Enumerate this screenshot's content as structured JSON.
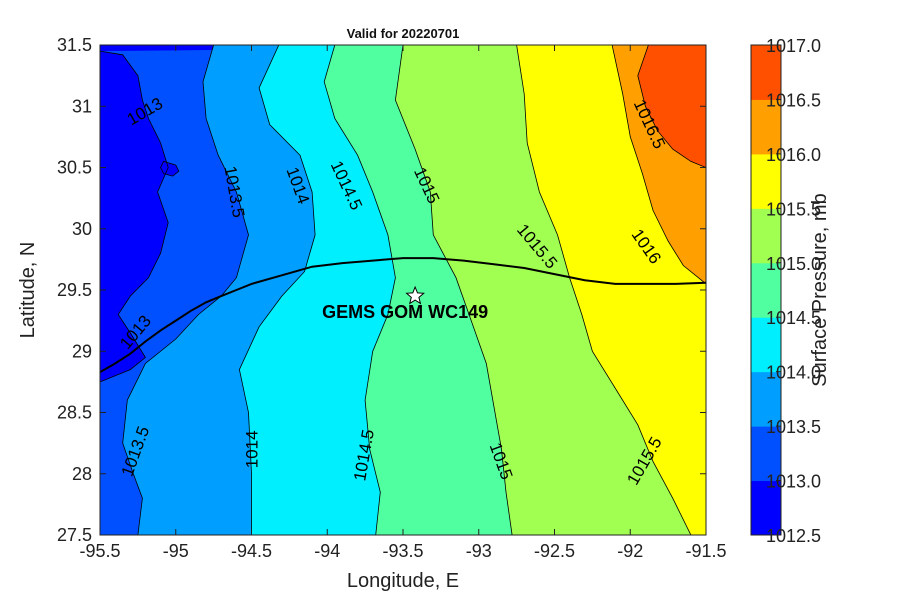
{
  "title": "Valid for 20220701",
  "xlabel": "Longitude, E",
  "ylabel": "Latitude, N",
  "x_ticks": [
    "-95.5",
    "-95",
    "-94.5",
    "-94",
    "-93.5",
    "-93",
    "-92.5",
    "-92",
    "-91.5"
  ],
  "y_ticks": [
    "27.5",
    "28",
    "28.5",
    "29",
    "29.5",
    "30",
    "30.5",
    "31",
    "31.5"
  ],
  "colorbar": {
    "label": "Surface Pressure, mb",
    "ticks": [
      "1012.5",
      "1013.0",
      "1013.5",
      "1014.0",
      "1014.5",
      "1015.0",
      "1015.5",
      "1016.0",
      "1016.5",
      "1017.0"
    ],
    "colors": [
      "#0000ff",
      "#0050ff",
      "#009fff",
      "#00efff",
      "#50ffa0",
      "#a0ff50",
      "#ffff00",
      "#ffa000",
      "#ff5000"
    ]
  },
  "station": {
    "label": "GEMS GOM WC149",
    "lon": -93.42,
    "lat": 29.45,
    "icon": "star-icon"
  },
  "contour_labels": [
    {
      "text": "1013",
      "lon": -95.2,
      "lat": 30.95,
      "angle": -30
    },
    {
      "text": "1013.5",
      "lon": -94.62,
      "lat": 30.3,
      "angle": 80
    },
    {
      "text": "1014",
      "lon": -94.2,
      "lat": 30.35,
      "angle": 70
    },
    {
      "text": "1014.5",
      "lon": -93.88,
      "lat": 30.35,
      "angle": 65
    },
    {
      "text": "1015",
      "lon": -93.35,
      "lat": 30.35,
      "angle": 65
    },
    {
      "text": "1015.5",
      "lon": -92.62,
      "lat": 29.85,
      "angle": 50
    },
    {
      "text": "1016",
      "lon": -91.9,
      "lat": 29.85,
      "angle": 55
    },
    {
      "text": "1016.5",
      "lon": -91.88,
      "lat": 30.85,
      "angle": 65
    },
    {
      "text": "1013",
      "lon": -95.26,
      "lat": 29.15,
      "angle": -50
    },
    {
      "text": "1013.5",
      "lon": -95.26,
      "lat": 28.18,
      "angle": -70
    },
    {
      "text": "1014",
      "lon": -94.49,
      "lat": 28.2,
      "angle": -90
    },
    {
      "text": "1014.5",
      "lon": -93.75,
      "lat": 28.15,
      "angle": -80
    },
    {
      "text": "1015",
      "lon": -92.86,
      "lat": 28.1,
      "angle": 70
    },
    {
      "text": "1015.5",
      "lon": -91.9,
      "lat": 28.1,
      "angle": -60
    }
  ],
  "chart_data": {
    "type": "heatmap",
    "title": "Valid for 20220701",
    "xlabel": "Longitude, E",
    "ylabel": "Latitude, N",
    "xlim": [
      -95.5,
      -91.5
    ],
    "ylim": [
      27.5,
      31.5
    ],
    "colorbar_label": "Surface Pressure, mb",
    "clim": [
      1012.5,
      1017.0
    ],
    "contour_levels": [
      1013.0,
      1013.5,
      1014.0,
      1014.5,
      1015.0,
      1015.5,
      1016.0,
      1016.5
    ],
    "contour_lines": [
      {
        "level": 1013.0,
        "lon": [
          -95.5,
          -95.35,
          -95.25,
          -95.22,
          -95.18,
          -95.1,
          -95.05,
          -95.12,
          -95.05,
          -95.1,
          -95.18,
          -95.3,
          -95.38,
          -95.3,
          -95.2,
          -95.3,
          -95.5
        ],
        "lat": [
          31.45,
          31.42,
          31.25,
          31.05,
          30.9,
          30.7,
          30.5,
          30.3,
          30.05,
          29.8,
          29.6,
          29.45,
          29.3,
          29.15,
          28.95,
          28.85,
          28.75
        ]
      },
      {
        "level": 1013.0,
        "lon": [
          -95.08,
          -95.02,
          -94.98,
          -95.0,
          -95.08,
          -95.1,
          -95.08
        ],
        "lat": [
          30.45,
          30.43,
          30.47,
          30.52,
          30.55,
          30.5,
          30.45
        ]
      },
      {
        "level": 1013.5,
        "lon": [
          -94.75,
          -94.82,
          -94.8,
          -94.72,
          -94.6,
          -94.52,
          -94.6,
          -94.7,
          -94.85,
          -95.0,
          -95.2,
          -95.32,
          -95.35,
          -95.28,
          -95.22,
          -95.25
        ],
        "lat": [
          31.5,
          31.2,
          30.9,
          30.6,
          30.3,
          29.95,
          29.6,
          29.45,
          29.3,
          29.1,
          28.9,
          28.6,
          28.25,
          28.0,
          27.8,
          27.5
        ]
      },
      {
        "level": 1014.0,
        "lon": [
          -94.32,
          -94.45,
          -94.38,
          -94.18,
          -94.1,
          -94.08,
          -94.15,
          -94.3,
          -94.45,
          -94.58,
          -94.52,
          -94.5,
          -94.5
        ],
        "lat": [
          31.5,
          31.15,
          30.85,
          30.6,
          30.3,
          29.95,
          29.65,
          29.45,
          29.2,
          28.85,
          28.5,
          28.0,
          27.5
        ]
      },
      {
        "level": 1014.5,
        "lon": [
          -93.95,
          -94.02,
          -93.95,
          -93.8,
          -93.7,
          -93.6,
          -93.55,
          -93.6,
          -93.7,
          -93.75,
          -93.72,
          -93.65,
          -93.68
        ],
        "lat": [
          31.5,
          31.2,
          30.9,
          30.6,
          30.3,
          29.95,
          29.6,
          29.3,
          29.0,
          28.6,
          28.2,
          27.85,
          27.5
        ]
      },
      {
        "level": 1015.0,
        "lon": [
          -93.5,
          -93.55,
          -93.42,
          -93.32,
          -93.3,
          -93.15,
          -93.05,
          -92.95,
          -92.9,
          -92.85,
          -92.82,
          -92.78
        ],
        "lat": [
          31.5,
          31.05,
          30.65,
          30.3,
          29.95,
          29.6,
          29.25,
          28.9,
          28.55,
          28.2,
          27.85,
          27.5
        ]
      },
      {
        "level": 1015.5,
        "lon": [
          -92.75,
          -92.7,
          -92.68,
          -92.6,
          -92.48,
          -92.4,
          -92.32,
          -92.25,
          -92.1,
          -91.95,
          -91.85,
          -91.72,
          -91.6
        ],
        "lat": [
          31.5,
          31.1,
          30.7,
          30.3,
          29.95,
          29.6,
          29.3,
          29.0,
          28.7,
          28.4,
          28.1,
          27.8,
          27.5
        ]
      },
      {
        "level": 1016.0,
        "lon": [
          -92.12,
          -92.05,
          -92.0,
          -91.92,
          -91.85,
          -91.75,
          -91.65,
          -91.55,
          -91.5
        ],
        "lat": [
          31.5,
          31.1,
          30.75,
          30.45,
          30.15,
          29.9,
          29.7,
          29.6,
          29.55
        ]
      },
      {
        "level": 1016.5,
        "lon": [
          -91.88,
          -91.95,
          -91.9,
          -91.82,
          -91.72,
          -91.6,
          -91.5
        ],
        "lat": [
          31.5,
          31.25,
          31.0,
          30.8,
          30.65,
          30.55,
          30.5
        ]
      }
    ],
    "coastline": {
      "lon": [
        -95.5,
        -95.4,
        -95.3,
        -95.2,
        -95.1,
        -95.0,
        -94.9,
        -94.8,
        -94.7,
        -94.6,
        -94.5,
        -94.3,
        -94.1,
        -93.9,
        -93.7,
        -93.5,
        -93.3,
        -93.1,
        -92.9,
        -92.7,
        -92.5,
        -92.3,
        -92.1,
        -91.9,
        -91.7,
        -91.5
      ],
      "lat": [
        28.83,
        28.9,
        28.98,
        29.08,
        29.17,
        29.25,
        29.33,
        29.4,
        29.45,
        29.5,
        29.55,
        29.62,
        29.69,
        29.72,
        29.74,
        29.76,
        29.76,
        29.74,
        29.71,
        29.68,
        29.63,
        29.58,
        29.55,
        29.55,
        29.55,
        29.56
      ]
    },
    "grid": false,
    "legend": "colorbar-right"
  }
}
